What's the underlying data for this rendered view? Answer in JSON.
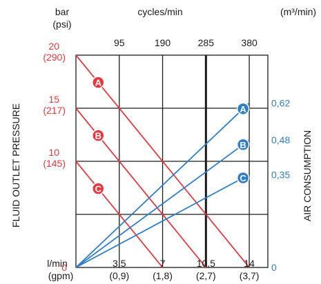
{
  "chart_data": {
    "type": "line",
    "units_top_left": [
      "bar",
      "(psi)"
    ],
    "units_top_center": "cycles/min",
    "units_top_right": "(m³/min)",
    "left_axis_label": "FLUID OUTLET PRESSURE",
    "right_axis_label": "AIR CONSUMPTION",
    "x_unit": [
      "l/min",
      "(gpm)"
    ],
    "xlim": [
      0,
      15.5
    ],
    "ylim_pressure_bar": [
      0,
      20
    ],
    "ylim_air": [
      0,
      0.8
    ],
    "grid": true,
    "top_ticks": [
      {
        "x": 3.5,
        "label": "95"
      },
      {
        "x": 7,
        "label": "190"
      },
      {
        "x": 10.5,
        "label": "285"
      },
      {
        "x": 14,
        "label": "380"
      }
    ],
    "bottom_ticks": [
      {
        "x": 3.5,
        "label": "3,5",
        "sub": "(0,9)"
      },
      {
        "x": 7,
        "label": "7",
        "sub": "(1,8)"
      },
      {
        "x": 10.5,
        "label": "10,5",
        "sub": "(2,7)"
      },
      {
        "x": 14,
        "label": "14",
        "sub": "(3,7)"
      }
    ],
    "left_ticks": [
      {
        "y": 20,
        "label": "20",
        "sub": "(290)"
      },
      {
        "y": 15,
        "label": "15",
        "sub": "(217)"
      },
      {
        "y": 10,
        "label": "10",
        "sub": "(145)"
      },
      {
        "y": 0,
        "label": "0",
        "sub": ""
      }
    ],
    "right_ticks": [
      {
        "y": 0.62,
        "label": "0,62"
      },
      {
        "y": 0.48,
        "label": "0,48"
      },
      {
        "y": 0.35,
        "label": "0,35"
      },
      {
        "y": 0,
        "label": "0"
      }
    ],
    "pressure_series": [
      {
        "name": "A",
        "x": [
          0,
          14
        ],
        "y": [
          20,
          0
        ],
        "marker_x": 1.8
      },
      {
        "name": "B",
        "x": [
          0,
          10.5
        ],
        "y": [
          15,
          0
        ],
        "marker_x": 1.8
      },
      {
        "name": "C",
        "x": [
          0,
          7
        ],
        "y": [
          10,
          0
        ],
        "marker_x": 1.8
      }
    ],
    "air_series": [
      {
        "name": "A",
        "x": [
          0,
          14
        ],
        "y": [
          0,
          0.62
        ],
        "marker_x": 13.5
      },
      {
        "name": "B",
        "x": [
          0,
          14
        ],
        "y": [
          0,
          0.48
        ],
        "marker_x": 13.5
      },
      {
        "name": "C",
        "x": [
          0,
          14
        ],
        "y": [
          0,
          0.35
        ],
        "marker_x": 13.5
      }
    ],
    "colors": {
      "pressure": "#e8383d",
      "air": "#2f7fc8",
      "grid": "#1a1a1a",
      "text": "#1a1a1a"
    }
  }
}
